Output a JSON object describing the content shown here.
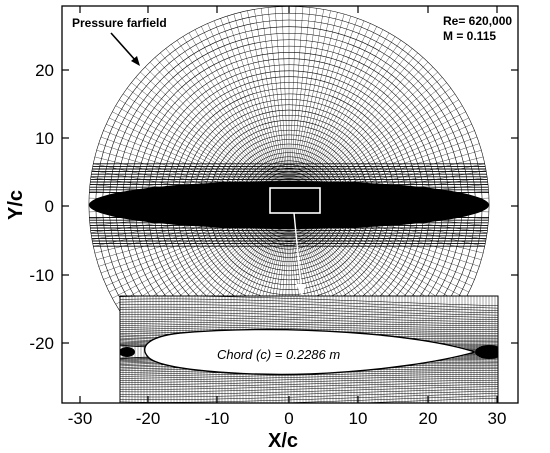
{
  "figure": {
    "x_axis_label": "X/c",
    "y_axis_label": "Y/c",
    "x_ticks": [
      "-30",
      "-20",
      "-10",
      "0",
      "10",
      "20",
      "30"
    ],
    "y_ticks": [
      "20",
      "10",
      "0",
      "-10",
      "-20"
    ],
    "farfield_label": "Pressure farfield",
    "reynolds_label": "Re= 620,000",
    "mach_label": "M  = 0.115",
    "chord_label": "Chord (c) = 0.2286 m"
  },
  "mesh": {
    "domain_radius_chords": 29,
    "x_range": [
      -37,
      37
    ],
    "y_range": [
      -29,
      29
    ]
  },
  "colors": {
    "mesh": "#000000",
    "background": "#ffffff",
    "highlight_box": "#ffffff"
  }
}
